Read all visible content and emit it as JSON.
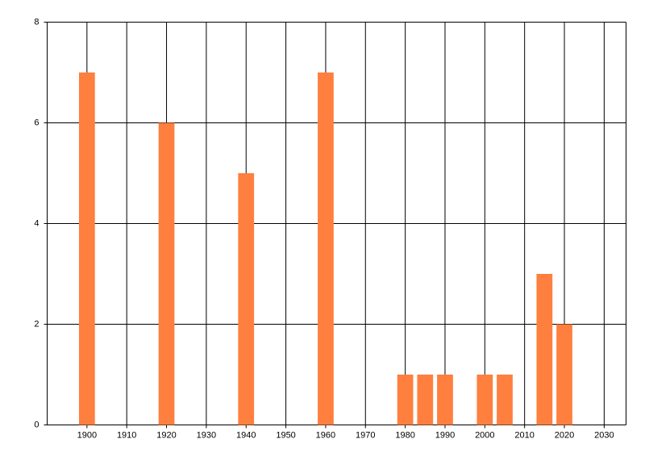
{
  "chart_data": {
    "type": "bar",
    "x": [
      1900,
      1920,
      1940,
      1960,
      1980,
      1985,
      1990,
      2000,
      2005,
      2015,
      2020
    ],
    "values": [
      7,
      6,
      5,
      7,
      1,
      1,
      1,
      1,
      1,
      3,
      2
    ],
    "color": "#ff7f3f",
    "xlim": [
      1890,
      2035.5
    ],
    "xticks": [
      1900,
      1910,
      1920,
      1930,
      1940,
      1950,
      1960,
      1970,
      1980,
      1990,
      2000,
      2010,
      2020,
      2030
    ],
    "ylim": [
      0,
      8
    ],
    "yticks": [
      0,
      2,
      4,
      6,
      8
    ],
    "grid": true
  }
}
